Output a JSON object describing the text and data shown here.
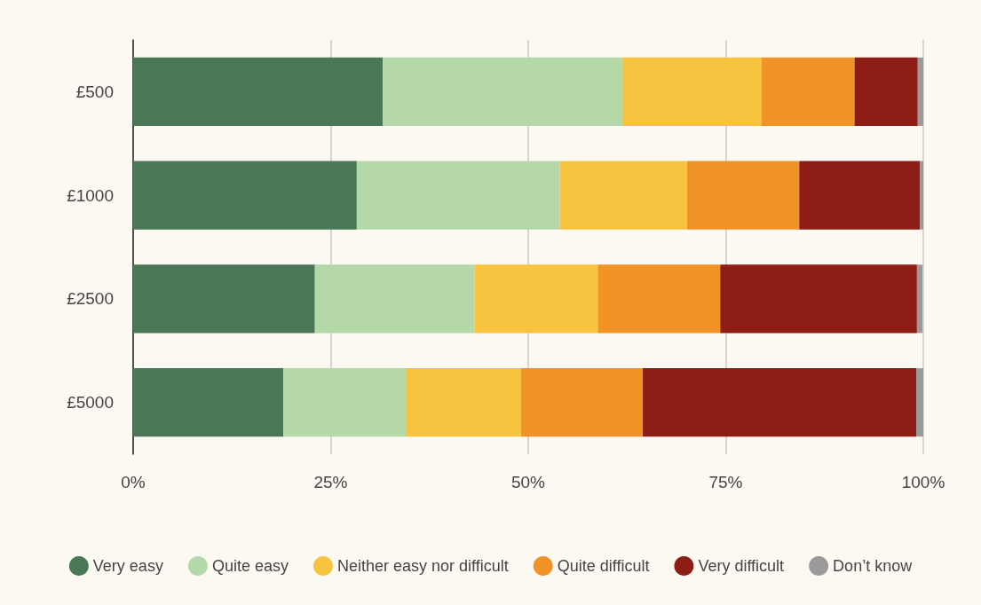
{
  "chart_data": {
    "type": "bar",
    "orientation": "horizontal",
    "stacked": true,
    "categories": [
      "£500",
      "£1000",
      "£2500",
      "£5000"
    ],
    "series": [
      {
        "name": "Very easy",
        "color": "#4a7856",
        "values": [
          31.6,
          28.3,
          23.0,
          19.0
        ]
      },
      {
        "name": "Quite easy",
        "color": "#b5d8a8",
        "values": [
          30.3,
          25.7,
          20.2,
          15.5
        ]
      },
      {
        "name": "Neither easy nor difficult",
        "color": "#f8c440",
        "values": [
          17.6,
          16.1,
          15.6,
          14.6
        ]
      },
      {
        "name": "Quite difficult",
        "color": "#f29327",
        "values": [
          11.8,
          14.2,
          15.5,
          15.4
        ]
      },
      {
        "name": "Very difficult",
        "color": "#8e1d16",
        "values": [
          8.0,
          15.3,
          24.9,
          34.6
        ]
      },
      {
        "name": "Don’t know",
        "color": "#9a9a9a",
        "values": [
          0.7,
          0.4,
          0.7,
          0.9
        ]
      }
    ],
    "xlim": [
      0,
      100
    ],
    "xticks": [
      {
        "value": 0,
        "label": "0%"
      },
      {
        "value": 25,
        "label": "25%"
      },
      {
        "value": 50,
        "label": "50%"
      },
      {
        "value": 75,
        "label": "75%"
      },
      {
        "value": 100,
        "label": "100%"
      }
    ],
    "grid": "x",
    "legend": "bottom"
  }
}
